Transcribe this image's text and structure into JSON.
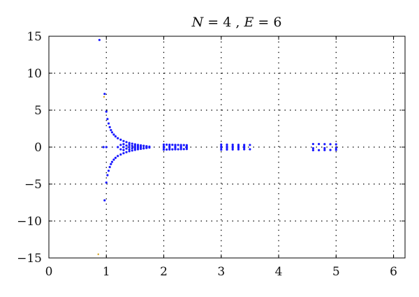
{
  "chart_data": {
    "type": "scatter",
    "title": {
      "var1": "N",
      "value1": "4",
      "var2": "E",
      "value2": "6"
    },
    "xlabel": "",
    "ylabel": "",
    "xlim": [
      0,
      6.2
    ],
    "ylim": [
      -15,
      15
    ],
    "x_ticks": [
      0,
      1,
      2,
      3,
      4,
      5,
      6
    ],
    "y_ticks": [
      -15,
      -10,
      -5,
      0,
      5,
      10,
      15
    ],
    "grid": true,
    "colors": {
      "points": "#1a1aff",
      "outliers": "#d4a017"
    },
    "series": [
      {
        "points": [
          [
            0.88,
            14.5
          ],
          [
            0.97,
            7.2
          ],
          [
            1.0,
            4.8
          ],
          [
            1.02,
            3.8
          ],
          [
            1.04,
            3.2
          ],
          [
            1.06,
            2.7
          ],
          [
            1.08,
            2.3
          ],
          [
            1.1,
            2.0
          ],
          [
            1.13,
            1.7
          ],
          [
            1.16,
            1.45
          ],
          [
            1.2,
            1.2
          ],
          [
            1.25,
            1.0
          ],
          [
            1.3,
            0.82
          ],
          [
            1.35,
            0.68
          ],
          [
            1.4,
            0.56
          ],
          [
            1.45,
            0.46
          ],
          [
            1.5,
            0.38
          ],
          [
            1.55,
            0.3
          ],
          [
            1.6,
            0.24
          ],
          [
            1.65,
            0.18
          ],
          [
            1.7,
            0.12
          ],
          [
            1.75,
            0.06
          ],
          [
            0.97,
            -7.2
          ],
          [
            1.0,
            -4.8
          ],
          [
            1.02,
            -3.8
          ],
          [
            1.04,
            -3.2
          ],
          [
            1.06,
            -2.7
          ],
          [
            1.08,
            -2.3
          ],
          [
            1.1,
            -2.0
          ],
          [
            1.13,
            -1.7
          ],
          [
            1.16,
            -1.45
          ],
          [
            1.2,
            -1.2
          ],
          [
            1.25,
            -1.0
          ],
          [
            1.3,
            -0.82
          ],
          [
            1.35,
            -0.68
          ],
          [
            1.4,
            -0.56
          ],
          [
            1.45,
            -0.46
          ],
          [
            1.5,
            -0.38
          ],
          [
            1.55,
            -0.3
          ],
          [
            1.6,
            -0.24
          ],
          [
            1.65,
            -0.18
          ],
          [
            1.7,
            -0.12
          ],
          [
            1.75,
            -0.06
          ],
          [
            0.95,
            0.0
          ],
          [
            1.0,
            0.0
          ],
          [
            1.2,
            0.0
          ],
          [
            1.3,
            0.0
          ],
          [
            1.4,
            0.0
          ],
          [
            1.5,
            0.0
          ],
          [
            1.25,
            0.3
          ],
          [
            1.25,
            -0.3
          ],
          [
            1.3,
            0.4
          ],
          [
            1.3,
            -0.4
          ],
          [
            1.35,
            0.2
          ],
          [
            1.35,
            -0.2
          ],
          [
            1.4,
            0.3
          ],
          [
            1.4,
            -0.3
          ],
          [
            1.45,
            0.15
          ],
          [
            1.45,
            -0.15
          ],
          [
            1.5,
            0.2
          ],
          [
            1.5,
            -0.2
          ],
          [
            1.55,
            0.1
          ],
          [
            1.55,
            -0.1
          ],
          [
            1.6,
            0.05
          ],
          [
            1.6,
            -0.05
          ],
          [
            1.7,
            0.02
          ],
          [
            1.7,
            -0.02
          ],
          [
            2.0,
            0.35
          ],
          [
            2.05,
            0.33
          ],
          [
            2.1,
            0.32
          ],
          [
            2.15,
            0.31
          ],
          [
            2.2,
            0.3
          ],
          [
            2.25,
            0.29
          ],
          [
            2.3,
            0.28
          ],
          [
            2.35,
            0.27
          ],
          [
            2.4,
            0.26
          ],
          [
            2.0,
            0.1
          ],
          [
            2.1,
            0.08
          ],
          [
            2.2,
            0.07
          ],
          [
            2.3,
            0.06
          ],
          [
            2.4,
            0.05
          ],
          [
            2.0,
            -0.1
          ],
          [
            2.1,
            -0.08
          ],
          [
            2.2,
            -0.07
          ],
          [
            2.3,
            -0.06
          ],
          [
            2.4,
            -0.05
          ],
          [
            2.0,
            -0.35
          ],
          [
            2.05,
            -0.33
          ],
          [
            2.1,
            -0.32
          ],
          [
            2.15,
            -0.31
          ],
          [
            2.2,
            -0.3
          ],
          [
            2.25,
            -0.29
          ],
          [
            2.3,
            -0.28
          ],
          [
            2.35,
            -0.27
          ],
          [
            2.4,
            -0.26
          ],
          [
            3.0,
            0.35
          ],
          [
            3.1,
            0.33
          ],
          [
            3.2,
            0.32
          ],
          [
            3.3,
            0.31
          ],
          [
            3.4,
            0.3
          ],
          [
            3.5,
            0.29
          ],
          [
            3.0,
            0.1
          ],
          [
            3.1,
            0.09
          ],
          [
            3.2,
            0.08
          ],
          [
            3.3,
            0.07
          ],
          [
            3.4,
            0.06
          ],
          [
            3.0,
            -0.1
          ],
          [
            3.1,
            -0.09
          ],
          [
            3.2,
            -0.08
          ],
          [
            3.3,
            -0.07
          ],
          [
            3.4,
            -0.06
          ],
          [
            3.0,
            -0.35
          ],
          [
            3.1,
            -0.33
          ],
          [
            3.2,
            -0.32
          ],
          [
            3.3,
            -0.31
          ],
          [
            3.4,
            -0.3
          ],
          [
            3.5,
            -0.29
          ],
          [
            4.6,
            0.42
          ],
          [
            4.7,
            0.41
          ],
          [
            4.8,
            0.4
          ],
          [
            4.9,
            0.39
          ],
          [
            5.0,
            0.38
          ],
          [
            4.6,
            -0.42
          ],
          [
            4.7,
            -0.41
          ],
          [
            4.8,
            -0.4
          ],
          [
            4.9,
            -0.39
          ],
          [
            5.0,
            -0.38
          ],
          [
            4.6,
            -0.15
          ],
          [
            4.8,
            -0.14
          ],
          [
            5.0,
            -0.12
          ]
        ]
      },
      {
        "points": [
          [
            0.86,
            -14.5
          ],
          [
            0.96,
            6.8
          ]
        ]
      }
    ]
  }
}
